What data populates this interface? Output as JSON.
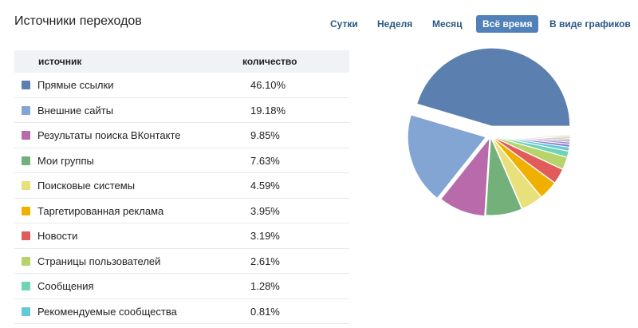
{
  "header": {
    "title": "Источники переходов",
    "periods": [
      {
        "label": "Сутки",
        "active": false
      },
      {
        "label": "Неделя",
        "active": false
      },
      {
        "label": "Месяц",
        "active": false
      },
      {
        "label": "Всё время",
        "active": true
      },
      {
        "label": "В виде графиков",
        "active": false
      }
    ]
  },
  "table": {
    "col_source": "источник",
    "col_count": "количество",
    "rows": [
      {
        "label": "Прямые ссылки",
        "value": "46.10%",
        "color": "#5b7fae"
      },
      {
        "label": "Внешние сайты",
        "value": "19.18%",
        "color": "#83a5d4"
      },
      {
        "label": "Результаты поиска ВКонтакте",
        "value": "9.85%",
        "color": "#b86aab"
      },
      {
        "label": "Мои группы",
        "value": "7.63%",
        "color": "#74b07a"
      },
      {
        "label": "Поисковые системы",
        "value": "4.59%",
        "color": "#e8e07a"
      },
      {
        "label": "Таргетированная реклама",
        "value": "3.95%",
        "color": "#f0b000"
      },
      {
        "label": "Новости",
        "value": "3.19%",
        "color": "#e25b5b"
      },
      {
        "label": "Страницы пользователей",
        "value": "2.61%",
        "color": "#b6d46a"
      },
      {
        "label": "Сообщения",
        "value": "1.28%",
        "color": "#6fd4b5"
      },
      {
        "label": "Рекомендуемые сообщества",
        "value": "0.81%",
        "color": "#64c8d8"
      }
    ]
  },
  "chart_data": {
    "type": "pie",
    "slices": [
      {
        "label": "Прямые ссылки",
        "value": 46.1,
        "color": "#5b7fae"
      },
      {
        "label": "Внешние сайты",
        "value": 19.18,
        "color": "#83a5d4"
      },
      {
        "label": "Результаты поиска ВКонтакте",
        "value": 9.85,
        "color": "#b86aab"
      },
      {
        "label": "Мои группы",
        "value": 7.63,
        "color": "#74b07a"
      },
      {
        "label": "Поисковые системы",
        "value": 4.59,
        "color": "#e8e07a"
      },
      {
        "label": "Таргетированная реклама",
        "value": 3.95,
        "color": "#f0b000"
      },
      {
        "label": "Новости",
        "value": 3.19,
        "color": "#e25b5b"
      },
      {
        "label": "Страницы пользователей",
        "value": 2.61,
        "color": "#b6d46a"
      },
      {
        "label": "Сообщения",
        "value": 1.28,
        "color": "#6fd4b5"
      },
      {
        "label": "Рекомендуемые сообщества",
        "value": 0.81,
        "color": "#64c8d8"
      },
      {
        "value": 0.6,
        "color": "#8a7fd0"
      },
      {
        "value": 0.45,
        "color": "#9a8ad8"
      },
      {
        "value": 0.4,
        "color": "#c77cc6"
      },
      {
        "value": 0.35,
        "color": "#8bc38a"
      },
      {
        "value": 0.3,
        "color": "#d4a96a"
      },
      {
        "value": 0.25,
        "color": "#a97c5c"
      }
    ]
  }
}
